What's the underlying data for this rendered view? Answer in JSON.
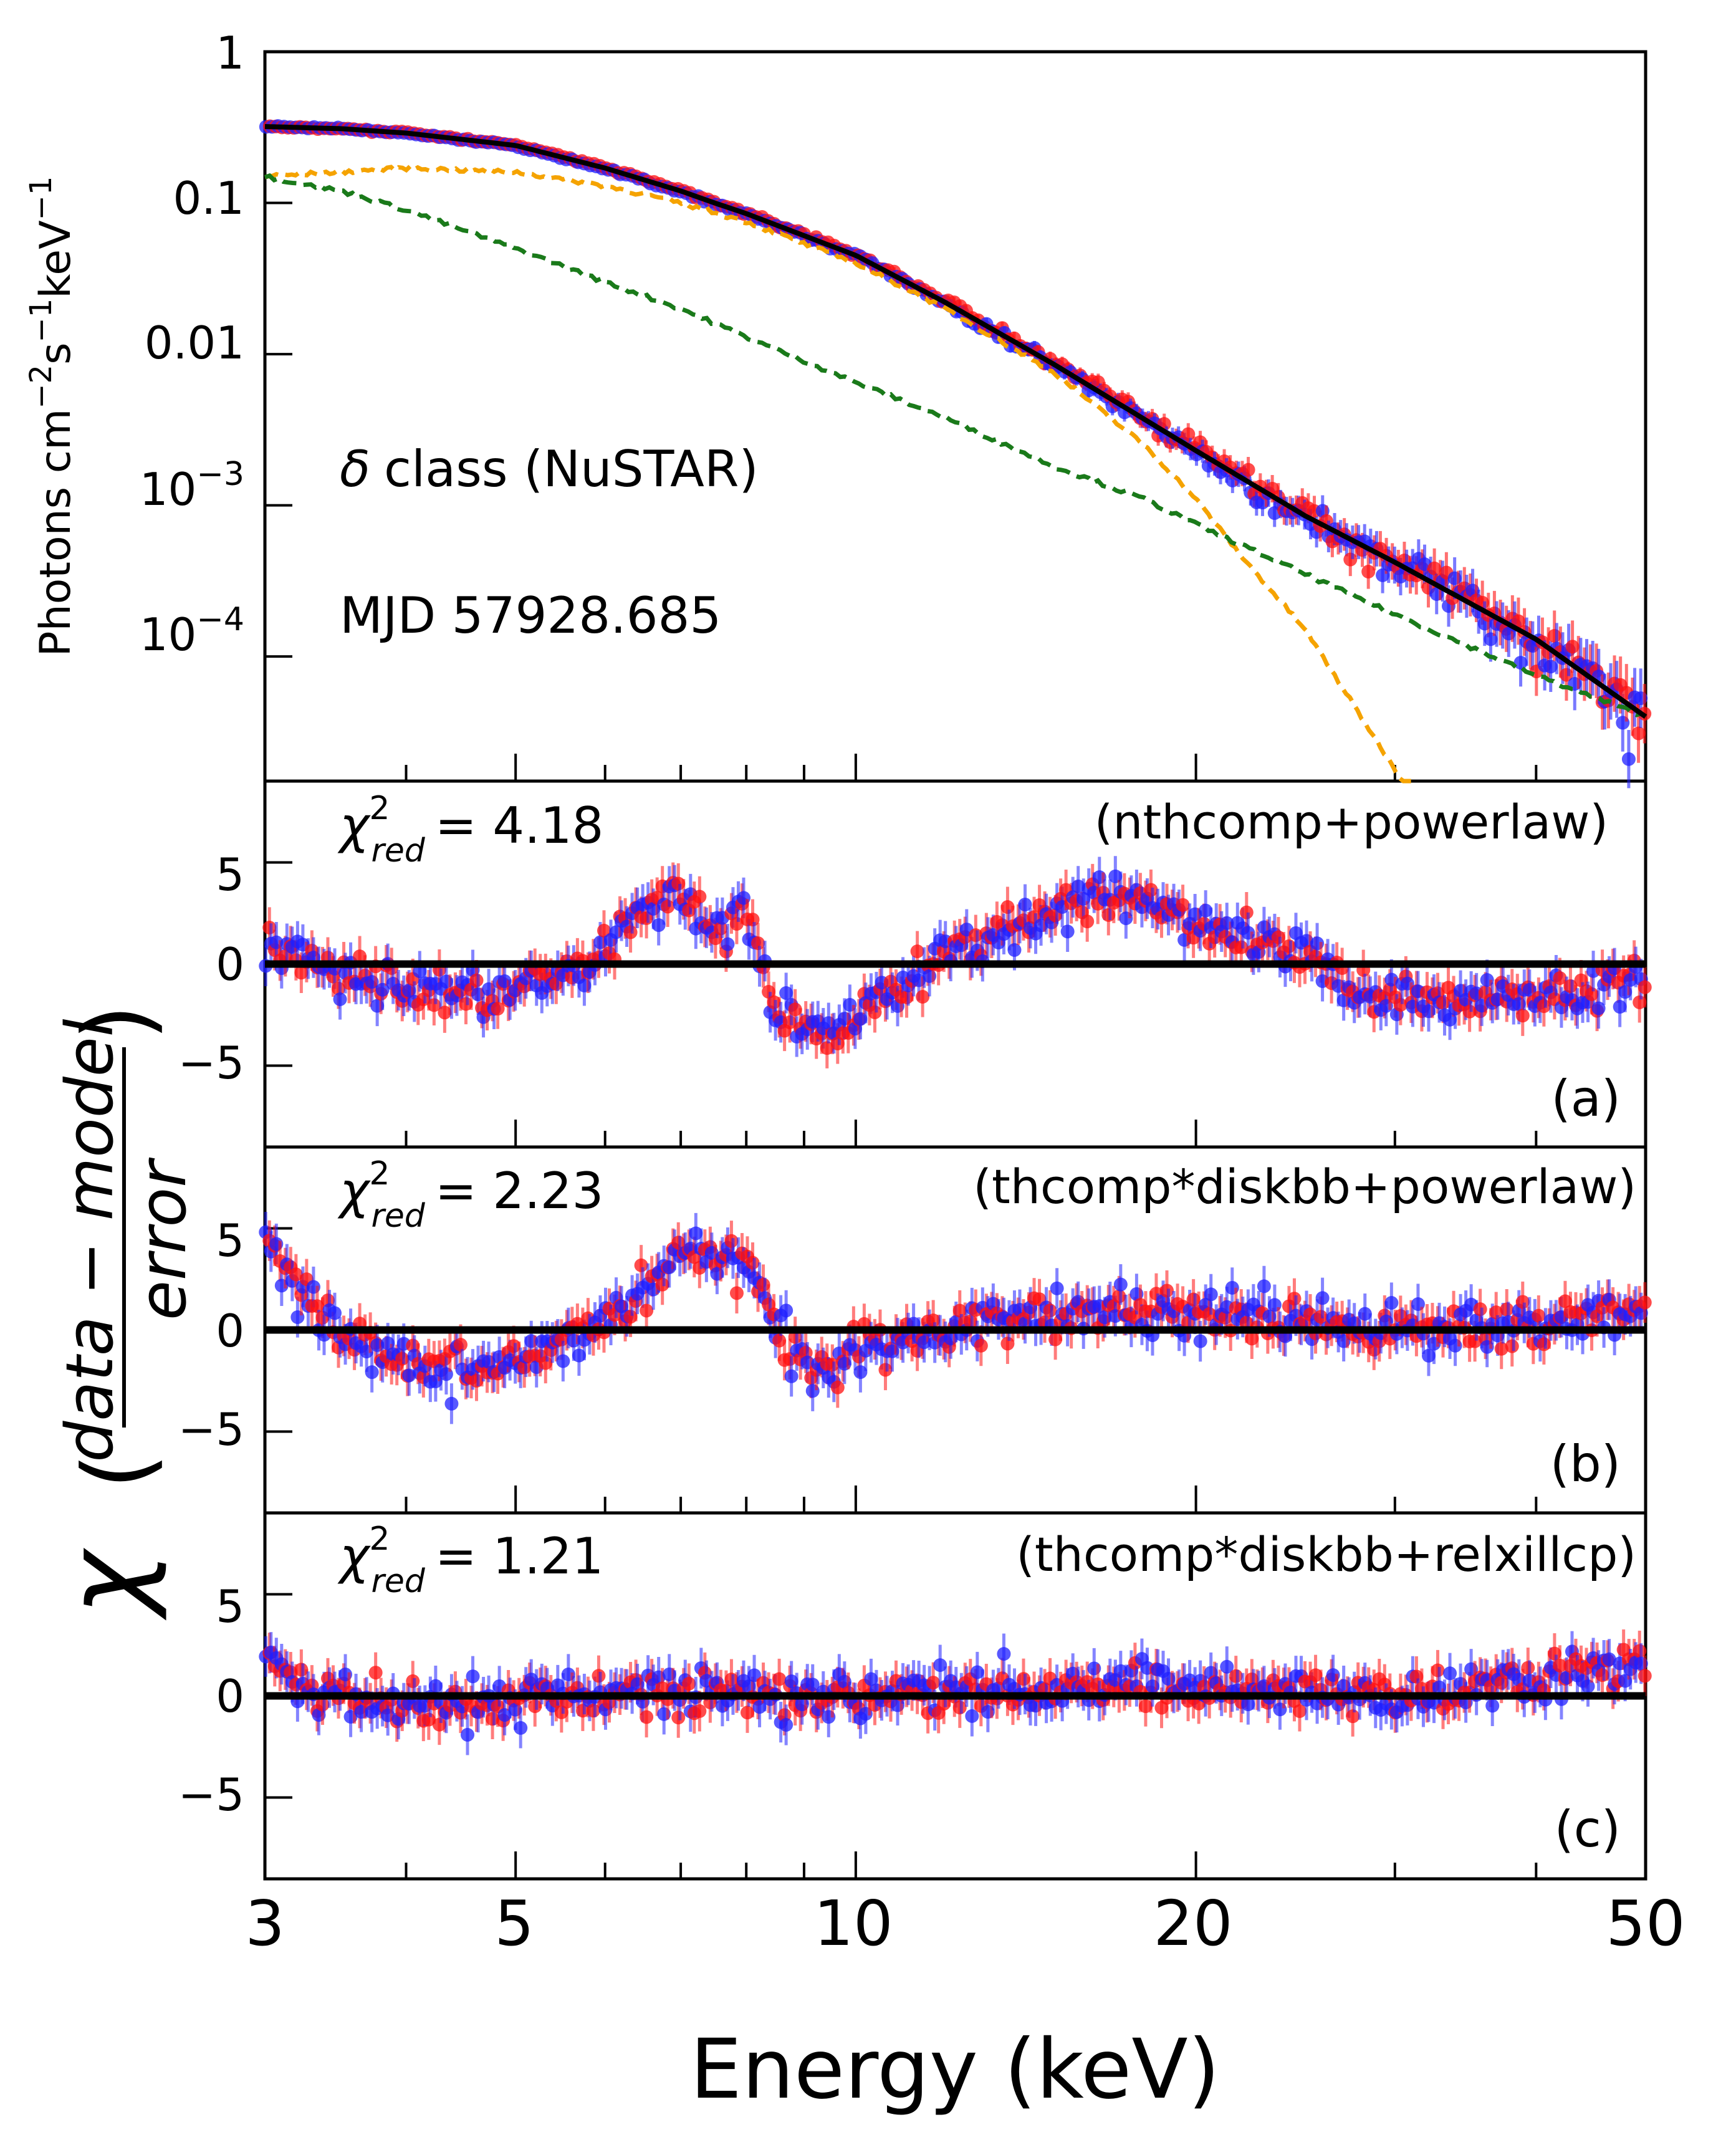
{
  "figure": {
    "xlabel": "Energy (keV)",
    "x_ticks": [
      "3",
      "5",
      "10",
      "20",
      "50"
    ],
    "x_tick_values": [
      3,
      5,
      10,
      20,
      50
    ],
    "xlim": [
      3,
      50
    ],
    "x_scale": "log"
  },
  "chart_data": [
    {
      "type": "line",
      "panel": "spectrum",
      "ylabel": "Photons cm",
      "ylabel_exp1": "−2",
      "ylabel_mid": "s",
      "ylabel_exp2": "−1",
      "ylabel_end": "keV",
      "ylabel_exp3": "−1",
      "y_scale": "log",
      "ylim": [
        1.5e-05,
        1
      ],
      "y_ticks": [
        {
          "value": 1,
          "base": "1",
          "exp": ""
        },
        {
          "value": 0.1,
          "base": "0.1",
          "exp": ""
        },
        {
          "value": 0.01,
          "base": "0.01",
          "exp": ""
        },
        {
          "value": 0.001,
          "base": "10",
          "exp": "−3"
        },
        {
          "value": 0.0001,
          "base": "10",
          "exp": "−4"
        }
      ],
      "annotations": {
        "class_symbol": "δ",
        "class_text": "class (NuSTAR)",
        "mjd": "MJD 57928.685"
      },
      "colors": {
        "data_fpma": "#1f1fff",
        "data_fpmb": "#ff1010",
        "total_model": "#000000",
        "thermal": "#f5a300",
        "powerlaw": "#1a7a1a"
      },
      "series": [
        {
          "role": "total model",
          "x": [
            3,
            3.5,
            4,
            5,
            6,
            7,
            7.5,
            8,
            10,
            12,
            15,
            20,
            25,
            30,
            40,
            50
          ],
          "values": [
            0.32,
            0.31,
            0.29,
            0.24,
            0.17,
            0.12,
            0.1,
            0.085,
            0.045,
            0.022,
            0.0085,
            0.0023,
            0.00085,
            0.00042,
            0.00013,
            4e-05
          ]
        },
        {
          "role": "thermal component",
          "x": [
            3,
            4,
            5,
            6,
            7,
            8,
            10,
            12,
            15,
            18,
            20,
            22,
            25,
            28,
            30,
            31
          ],
          "values": [
            0.15,
            0.17,
            0.16,
            0.13,
            0.1,
            0.075,
            0.04,
            0.02,
            0.0075,
            0.0025,
            0.0011,
            0.00045,
            0.00015,
            4e-05,
            1.8e-05,
            1.2e-05
          ]
        },
        {
          "role": "power-law component",
          "x": [
            3,
            3.5,
            4,
            5,
            6,
            7,
            8,
            10,
            12,
            15,
            18,
            20,
            25,
            30,
            40,
            50
          ],
          "values": [
            0.15,
            0.12,
            0.09,
            0.05,
            0.03,
            0.02,
            0.013,
            0.0065,
            0.0038,
            0.0018,
            0.0011,
            0.00075,
            0.00035,
            0.00019,
            7.5e-05,
            4e-05
          ]
        }
      ]
    },
    {
      "type": "scatter",
      "panel": "residuals (a)",
      "chi_label": "χ",
      "chi_sub": "red",
      "chi_sup": "2",
      "chi_value": "= 4.18",
      "model": "(nthcomp+powerlaw)",
      "tag": "(a)",
      "ylim": [
        -9,
        9
      ],
      "y_ticks": [
        "5",
        "0",
        "−5"
      ],
      "y_tick_values": [
        5,
        0,
        -5
      ],
      "residual_profile": {
        "x": [
          3,
          3.5,
          4,
          5,
          6,
          6.5,
          7,
          7.5,
          8,
          8.5,
          9,
          9.5,
          10,
          12,
          14,
          16,
          18,
          20,
          22,
          25,
          28,
          32,
          40,
          50
        ],
        "values": [
          0.8,
          -0.5,
          -1.2,
          -1.5,
          0.8,
          2.5,
          3.5,
          1.5,
          2.5,
          -2.5,
          -3.0,
          -3.5,
          -2.5,
          0.5,
          2.0,
          3.0,
          3.0,
          2.0,
          1.5,
          0.5,
          -1.5,
          -1.8,
          -1.5,
          -0.8
        ]
      }
    },
    {
      "type": "scatter",
      "panel": "residuals (b)",
      "chi_label": "χ",
      "chi_sub": "red",
      "chi_sup": "2",
      "chi_value": "= 2.23",
      "model": "(thcomp*diskbb+powerlaw)",
      "tag": "(b)",
      "ylim": [
        -9,
        9
      ],
      "y_ticks": [
        "5",
        "0",
        "−5"
      ],
      "y_tick_values": [
        5,
        0,
        -5
      ],
      "residual_profile": {
        "x": [
          3,
          3.2,
          3.5,
          4,
          4.5,
          5,
          5.5,
          6,
          6.5,
          7,
          7.5,
          8,
          8.5,
          9,
          9.5,
          10,
          12,
          15,
          20,
          25,
          30,
          40,
          50
        ],
        "values": [
          4.5,
          2.0,
          0.0,
          -1.5,
          -2.0,
          -1.5,
          -0.5,
          0.3,
          2.0,
          4.0,
          3.0,
          3.5,
          0.0,
          -1.5,
          -2.0,
          -1.0,
          0.2,
          1.0,
          0.8,
          0.3,
          0.0,
          0.3,
          1.0
        ]
      }
    },
    {
      "type": "scatter",
      "panel": "residuals (c)",
      "chi_label": "χ",
      "chi_sub": "red",
      "chi_sup": "2",
      "chi_value": "= 1.21",
      "model": "(thcomp*diskbb+relxillcp)",
      "tag": "(c)",
      "ylim": [
        -9,
        9
      ],
      "y_ticks": [
        "5",
        "0",
        "−5"
      ],
      "y_tick_values": [
        5,
        0,
        -5
      ],
      "residual_profile": {
        "x": [
          3,
          3.3,
          4,
          5,
          6,
          7,
          8,
          10,
          15,
          20,
          30,
          40,
          50
        ],
        "values": [
          2.0,
          0.0,
          -0.5,
          -0.2,
          0.2,
          0.3,
          0.0,
          0.2,
          0.5,
          0.3,
          0.0,
          1.0,
          1.5
        ]
      }
    }
  ],
  "shared_ylabel": {
    "chi": "χ",
    "numerator": "data − model",
    "denominator": "error"
  }
}
